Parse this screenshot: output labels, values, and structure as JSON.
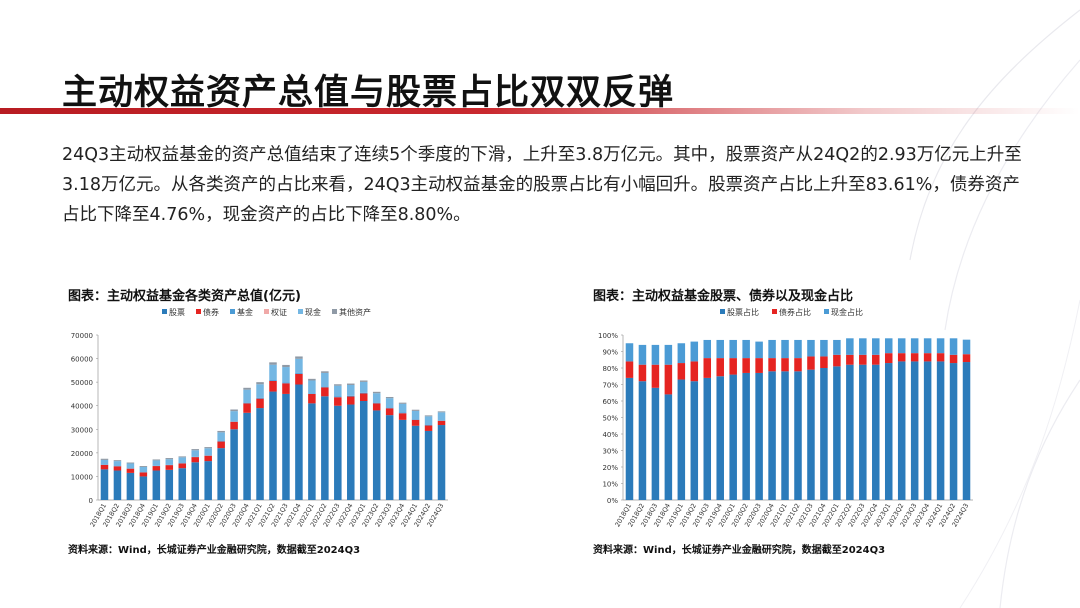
{
  "title": "主动权益资产总值与股票占比双双反弹",
  "body_text": "24Q3主动权益基金的资产总值结束了连续5个季度的下滑，上升至3.8万亿元。其中，股票资产从24Q2的2.93万亿元上升至3.18万亿元。从各类资产的占比来看，24Q3主动权益基金的股票占比有小幅回升。股票资产占比上升至83.61%，债券资产占比下降至4.76%，现金资产的占比下降至8.80%。",
  "chart1_title": "图表：主动权益基金各类资产总值(亿元)",
  "chart2_title": "图表：主动权益基金股票、债券以及现金占比",
  "source1": "资料来源：Wind，长城证券产业金融研究院，数据截至2024Q3",
  "source2": "资料来源：Wind，长城证券产业金融研究院，数据截至2024Q3",
  "colors": {
    "stock": "#2b7bba",
    "bond": "#e52421",
    "fund": "#4b9bd5",
    "warrant": "#f0a9a8",
    "cash": "#74b7e3",
    "other": "#8f9aa6",
    "accent": "#b81c22"
  },
  "chart_data": [
    {
      "type": "bar",
      "stacked": true,
      "categories": [
        "2018Q1",
        "2018Q2",
        "2018Q3",
        "2018Q4",
        "2019Q1",
        "2019Q2",
        "2019Q3",
        "2019Q4",
        "2020Q1",
        "2020Q2",
        "2020Q3",
        "2020Q4",
        "2021Q1",
        "2021Q2",
        "2021Q3",
        "2021Q4",
        "2022Q1",
        "2022Q2",
        "2022Q3",
        "2022Q4",
        "2023Q1",
        "2023Q2",
        "2023Q3",
        "2023Q4",
        "2024Q1",
        "2024Q2",
        "2024Q3"
      ],
      "x_tick_labels": [
        "2018Q1",
        "2018Q2",
        "2018Q3",
        "2018Q4",
        "2019Q1",
        "2019Q2",
        "2019Q3",
        "2019Q4",
        "2020Q1",
        "2020Q2",
        "2020Q3",
        "2020Q4",
        "2021Q1",
        "2021Q2",
        "2021Q3",
        "2021Q4",
        "2022Q1",
        "2022Q2",
        "2022Q3",
        "2022Q4",
        "2023Q1",
        "2023Q2",
        "2023Q3",
        "2023Q4",
        "2024Q1",
        "2024Q2",
        "2024Q3"
      ],
      "series": [
        {
          "name": "股票",
          "color": "#2b7bba",
          "values": [
            13000,
            12500,
            11500,
            10000,
            12500,
            12800,
            13500,
            16000,
            16500,
            22000,
            30000,
            37000,
            39000,
            46000,
            45000,
            49000,
            41000,
            44000,
            40000,
            40500,
            42000,
            38000,
            36000,
            34000,
            31500,
            29300,
            31800
          ]
        },
        {
          "name": "债券",
          "color": "#e52421",
          "values": [
            1900,
            1800,
            1800,
            1700,
            1900,
            2000,
            2000,
            2200,
            2300,
            2800,
            3200,
            4000,
            4000,
            4500,
            4500,
            4500,
            4000,
            3800,
            3600,
            3400,
            3200,
            3000,
            2900,
            2800,
            2500,
            2300,
            1800
          ]
        },
        {
          "name": "基金",
          "color": "#4b9bd5",
          "values": [
            100,
            100,
            100,
            100,
            100,
            100,
            100,
            100,
            150,
            200,
            200,
            300,
            300,
            400,
            400,
            400,
            300,
            300,
            300,
            300,
            300,
            300,
            300,
            300,
            300,
            200,
            200
          ]
        },
        {
          "name": "权证",
          "color": "#f0a9a8",
          "values": [
            0,
            0,
            0,
            0,
            0,
            0,
            0,
            0,
            0,
            0,
            0,
            0,
            0,
            0,
            0,
            0,
            0,
            0,
            0,
            0,
            0,
            0,
            0,
            0,
            0,
            0,
            0
          ]
        },
        {
          "name": "现金",
          "color": "#74b7e3",
          "values": [
            2000,
            2100,
            2100,
            2200,
            2300,
            2400,
            2500,
            2800,
            3000,
            3700,
            4300,
            5500,
            5800,
            6500,
            6500,
            6000,
            5400,
            5800,
            4600,
            4600,
            4600,
            4000,
            4000,
            3700,
            3500,
            3700,
            3400
          ]
        },
        {
          "name": "其他资产",
          "color": "#8f9aa6",
          "values": [
            500,
            400,
            400,
            400,
            400,
            500,
            400,
            500,
            500,
            600,
            700,
            800,
            900,
            1000,
            900,
            1000,
            700,
            700,
            600,
            600,
            600,
            600,
            500,
            500,
            500,
            400,
            400
          ]
        }
      ],
      "ylim": [
        0,
        70000
      ],
      "y_ticks": [
        "0",
        "10000",
        "20000",
        "30000",
        "40000",
        "50000",
        "60000",
        "70000"
      ],
      "legend_position": "top",
      "grid": false
    },
    {
      "type": "bar",
      "stacked": true,
      "categories": [
        "2018Q1",
        "2018Q2",
        "2018Q3",
        "2018Q4",
        "2019Q1",
        "2019Q2",
        "2019Q3",
        "2019Q4",
        "2020Q1",
        "2020Q2",
        "2020Q3",
        "2020Q4",
        "2021Q1",
        "2021Q2",
        "2021Q3",
        "2021Q4",
        "2022Q1",
        "2022Q2",
        "2022Q3",
        "2022Q4",
        "2023Q1",
        "2023Q2",
        "2023Q3",
        "2023Q4",
        "2024Q1",
        "2024Q2",
        "2024Q3"
      ],
      "x_tick_labels": [
        "2018Q1",
        "2018Q2",
        "2018Q3",
        "2018Q4",
        "2019Q1",
        "2019Q2",
        "2019Q3",
        "2019Q4",
        "2020Q1",
        "2020Q2",
        "2020Q3",
        "2020Q4",
        "2021Q1",
        "2021Q2",
        "2021Q3",
        "2021Q4",
        "2022Q1",
        "2022Q2",
        "2022Q3",
        "2022Q4",
        "2023Q1",
        "2023Q2",
        "2023Q3",
        "2023Q4",
        "2024Q1",
        "2024Q2",
        "2024Q3"
      ],
      "series": [
        {
          "name": "股票占比",
          "color": "#2b7bba",
          "values": [
            74,
            72,
            68,
            64,
            73,
            72,
            74,
            75,
            76,
            77,
            77,
            78,
            78,
            78,
            79,
            80,
            81,
            82,
            82,
            82,
            83,
            84,
            84,
            84,
            84,
            83,
            83.61
          ]
        },
        {
          "name": "债券占比",
          "color": "#e52421",
          "values": [
            10,
            10,
            14,
            18,
            10,
            12,
            12,
            11,
            10,
            9,
            9,
            8,
            8,
            8,
            8,
            7,
            7,
            6,
            6,
            6,
            6,
            5,
            5,
            5,
            5,
            5,
            4.76
          ]
        },
        {
          "name": "现金占比",
          "color": "#4b9bd5",
          "values": [
            11,
            12,
            12,
            12,
            12,
            12,
            11,
            11,
            11,
            11,
            10,
            11,
            11,
            11,
            10,
            10,
            9,
            10,
            10,
            10,
            9,
            9,
            9,
            9,
            9,
            10,
            8.8
          ]
        }
      ],
      "ylim": [
        0,
        100
      ],
      "y_ticks": [
        "0%",
        "10%",
        "20%",
        "30%",
        "40%",
        "50%",
        "60%",
        "70%",
        "80%",
        "90%",
        "100%"
      ],
      "legend_position": "top",
      "grid": false
    }
  ]
}
